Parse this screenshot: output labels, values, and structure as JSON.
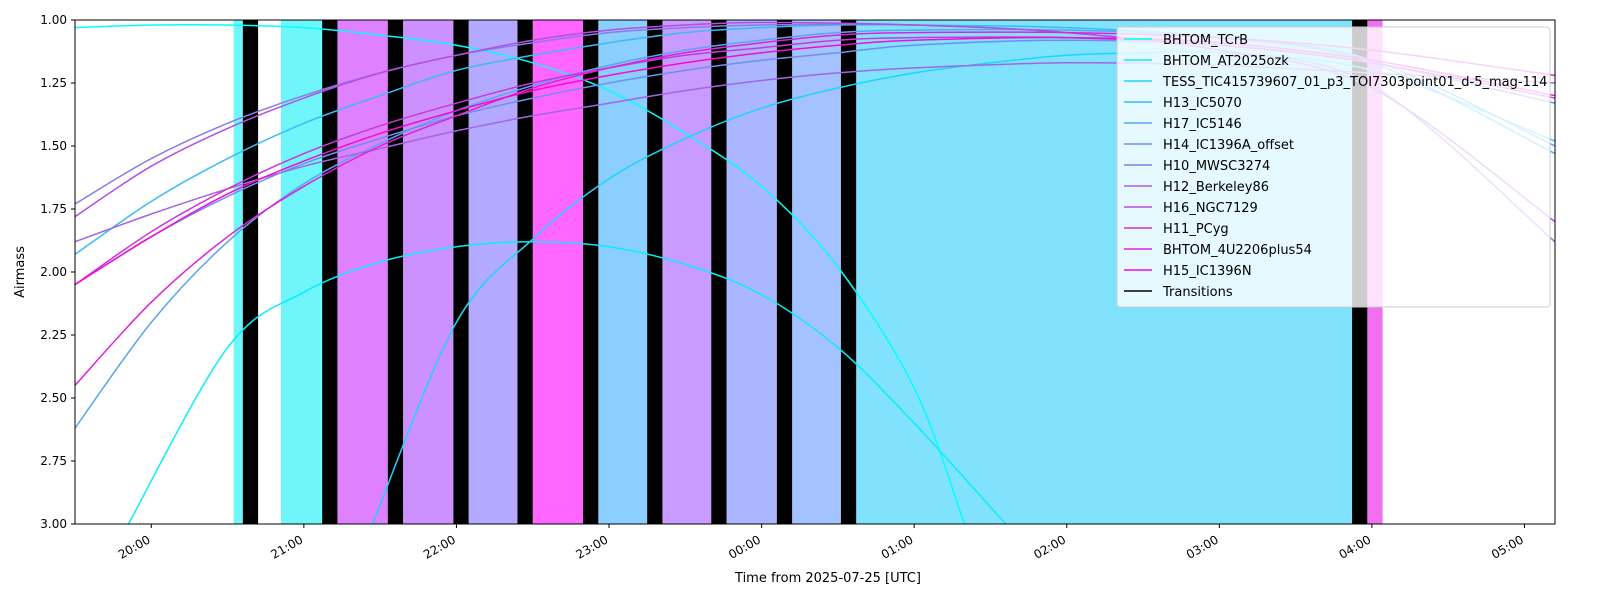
{
  "chart_data": {
    "type": "line",
    "title": "",
    "xlabel": "Time from 2025-07-25 [UTC]",
    "ylabel": "Airmass",
    "x_range_hours": [
      19.5,
      29.2
    ],
    "ylim": [
      3.0,
      1.0
    ],
    "y_inverted": true,
    "x_ticks": [
      {
        "h": 20,
        "label": "20:00"
      },
      {
        "h": 21,
        "label": "21:00"
      },
      {
        "h": 22,
        "label": "22:00"
      },
      {
        "h": 23,
        "label": "23:00"
      },
      {
        "h": 24,
        "label": "00:00"
      },
      {
        "h": 25,
        "label": "01:00"
      },
      {
        "h": 26,
        "label": "02:00"
      },
      {
        "h": 27,
        "label": "03:00"
      },
      {
        "h": 28,
        "label": "04:00"
      },
      {
        "h": 29,
        "label": "05:00"
      }
    ],
    "y_ticks": [
      {
        "v": 1.0,
        "label": "1.00"
      },
      {
        "v": 1.25,
        "label": "1.25"
      },
      {
        "v": 1.5,
        "label": "1.50"
      },
      {
        "v": 1.75,
        "label": "1.75"
      },
      {
        "v": 2.0,
        "label": "2.00"
      },
      {
        "v": 2.25,
        "label": "2.25"
      },
      {
        "v": 2.5,
        "label": "2.50"
      },
      {
        "v": 2.75,
        "label": "2.75"
      },
      {
        "v": 3.0,
        "label": "3.00"
      }
    ],
    "grid": false,
    "legend_position": "top-right",
    "series": [
      {
        "name": "BHTOM_TCrB",
        "color": "#00ffff",
        "points": [
          [
            19.5,
            1.03
          ],
          [
            20.0,
            1.02
          ],
          [
            20.5,
            1.02
          ],
          [
            21.0,
            1.03
          ],
          [
            21.5,
            1.06
          ],
          [
            22.0,
            1.1
          ],
          [
            22.5,
            1.17
          ],
          [
            23.0,
            1.28
          ],
          [
            23.5,
            1.45
          ],
          [
            24.0,
            1.66
          ],
          [
            24.5,
            1.98
          ],
          [
            25.0,
            2.46
          ],
          [
            25.33,
            3.0
          ]
        ]
      },
      {
        "name": "BHTOM_AT2025ozk",
        "color": "#0aeefc",
        "points": [
          [
            19.85,
            3.0
          ],
          [
            20.5,
            2.3
          ],
          [
            21.0,
            2.08
          ],
          [
            21.5,
            1.96
          ],
          [
            22.0,
            1.9
          ],
          [
            22.5,
            1.88
          ],
          [
            23.0,
            1.9
          ],
          [
            23.5,
            1.97
          ],
          [
            24.0,
            2.09
          ],
          [
            24.5,
            2.3
          ],
          [
            25.0,
            2.6
          ],
          [
            25.6,
            3.0
          ]
        ]
      },
      {
        "name": "TESS_TIC415739607_01_p3_TOI7303point01_d-5_mag-114",
        "color": "#1cd5f9",
        "points": [
          [
            21.45,
            3.0
          ],
          [
            22.0,
            2.2
          ],
          [
            22.5,
            1.87
          ],
          [
            23.0,
            1.63
          ],
          [
            23.5,
            1.47
          ],
          [
            24.0,
            1.35
          ],
          [
            24.5,
            1.27
          ],
          [
            25.0,
            1.21
          ],
          [
            25.5,
            1.17
          ],
          [
            26.0,
            1.14
          ],
          [
            26.5,
            1.13
          ],
          [
            27.0,
            1.13
          ],
          [
            28.0,
            1.2
          ],
          [
            29.2,
            1.48
          ]
        ]
      },
      {
        "name": "H13_IC5070",
        "color": "#3bbbf3",
        "points": [
          [
            19.5,
            1.93
          ],
          [
            20.0,
            1.72
          ],
          [
            20.5,
            1.55
          ],
          [
            21.0,
            1.41
          ],
          [
            21.5,
            1.3
          ],
          [
            22.0,
            1.2
          ],
          [
            22.5,
            1.14
          ],
          [
            23.0,
            1.09
          ],
          [
            23.5,
            1.05
          ],
          [
            24.0,
            1.03
          ],
          [
            24.5,
            1.02
          ],
          [
            25.0,
            1.02
          ],
          [
            26.0,
            1.03
          ],
          [
            27.0,
            1.07
          ],
          [
            28.0,
            1.17
          ],
          [
            29.2,
            1.53
          ]
        ]
      },
      {
        "name": "H17_IC5146",
        "color": "#5aa5ef",
        "points": [
          [
            19.5,
            2.62
          ],
          [
            20.0,
            2.2
          ],
          [
            20.5,
            1.88
          ],
          [
            21.0,
            1.65
          ],
          [
            21.5,
            1.49
          ],
          [
            22.0,
            1.36
          ],
          [
            22.5,
            1.26
          ],
          [
            23.0,
            1.18
          ],
          [
            23.5,
            1.12
          ],
          [
            24.0,
            1.08
          ],
          [
            24.5,
            1.05
          ],
          [
            25.0,
            1.04
          ],
          [
            26.0,
            1.04
          ],
          [
            27.0,
            1.07
          ],
          [
            28.0,
            1.16
          ],
          [
            29.2,
            1.5
          ]
        ]
      },
      {
        "name": "H14_IC1396A_offset",
        "color": "#6e90ec",
        "points": [
          [
            19.5,
            2.05
          ],
          [
            20.0,
            1.86
          ],
          [
            20.5,
            1.7
          ],
          [
            21.0,
            1.57
          ],
          [
            21.5,
            1.47
          ],
          [
            22.0,
            1.38
          ],
          [
            22.5,
            1.31
          ],
          [
            23.0,
            1.25
          ],
          [
            23.5,
            1.2
          ],
          [
            24.0,
            1.16
          ],
          [
            24.5,
            1.13
          ],
          [
            25.0,
            1.1
          ],
          [
            26.0,
            1.08
          ],
          [
            27.0,
            1.1
          ],
          [
            28.0,
            1.17
          ],
          [
            29.2,
            1.33
          ]
        ]
      },
      {
        "name": "H10_MWSC3274",
        "color": "#8a7be6",
        "points": [
          [
            19.5,
            1.73
          ],
          [
            20.0,
            1.55
          ],
          [
            20.5,
            1.41
          ],
          [
            21.0,
            1.3
          ],
          [
            21.5,
            1.21
          ],
          [
            22.0,
            1.14
          ],
          [
            22.5,
            1.09
          ],
          [
            23.0,
            1.05
          ],
          [
            23.5,
            1.03
          ],
          [
            24.0,
            1.02
          ],
          [
            25.0,
            1.02
          ],
          [
            26.0,
            1.05
          ],
          [
            27.0,
            1.12
          ],
          [
            28.0,
            1.26
          ],
          [
            29.2,
            1.88
          ]
        ]
      },
      {
        "name": "H12_Berkeley86",
        "color": "#a265e3",
        "points": [
          [
            19.5,
            1.88
          ],
          [
            20.0,
            1.77
          ],
          [
            20.5,
            1.67
          ],
          [
            21.0,
            1.58
          ],
          [
            21.5,
            1.51
          ],
          [
            22.0,
            1.44
          ],
          [
            22.5,
            1.38
          ],
          [
            23.0,
            1.33
          ],
          [
            23.5,
            1.28
          ],
          [
            24.0,
            1.24
          ],
          [
            24.5,
            1.21
          ],
          [
            25.0,
            1.19
          ],
          [
            26.0,
            1.17
          ],
          [
            27.0,
            1.18
          ],
          [
            28.0,
            1.21
          ],
          [
            29.2,
            1.25
          ]
        ]
      },
      {
        "name": "H16_NGC7129",
        "color": "#b54ee0",
        "points": [
          [
            19.5,
            1.78
          ],
          [
            20.0,
            1.58
          ],
          [
            20.5,
            1.43
          ],
          [
            21.0,
            1.31
          ],
          [
            21.5,
            1.21
          ],
          [
            22.0,
            1.14
          ],
          [
            22.5,
            1.08
          ],
          [
            23.0,
            1.04
          ],
          [
            23.5,
            1.02
          ],
          [
            24.0,
            1.01
          ],
          [
            25.0,
            1.02
          ],
          [
            26.0,
            1.05
          ],
          [
            27.0,
            1.12
          ],
          [
            28.0,
            1.27
          ],
          [
            29.2,
            1.8
          ]
        ]
      },
      {
        "name": "H11_PCyg",
        "color": "#c938dc",
        "points": [
          [
            19.5,
            2.05
          ],
          [
            20.0,
            1.84
          ],
          [
            20.5,
            1.67
          ],
          [
            21.0,
            1.53
          ],
          [
            21.5,
            1.42
          ],
          [
            22.0,
            1.33
          ],
          [
            22.5,
            1.25
          ],
          [
            23.0,
            1.19
          ],
          [
            23.5,
            1.14
          ],
          [
            24.0,
            1.11
          ],
          [
            24.5,
            1.08
          ],
          [
            25.0,
            1.07
          ],
          [
            26.0,
            1.07
          ],
          [
            27.0,
            1.1
          ],
          [
            28.0,
            1.17
          ],
          [
            29.2,
            1.31
          ]
        ]
      },
      {
        "name": "BHTOM_4U2206plus54",
        "color": "#e21fd9",
        "points": [
          [
            19.5,
            2.45
          ],
          [
            20.0,
            2.12
          ],
          [
            20.5,
            1.86
          ],
          [
            21.0,
            1.66
          ],
          [
            21.5,
            1.5
          ],
          [
            22.0,
            1.38
          ],
          [
            22.5,
            1.27
          ],
          [
            23.0,
            1.19
          ],
          [
            23.5,
            1.13
          ],
          [
            24.0,
            1.09
          ],
          [
            24.5,
            1.06
          ],
          [
            25.0,
            1.05
          ],
          [
            26.0,
            1.05
          ],
          [
            27.0,
            1.07
          ],
          [
            28.0,
            1.12
          ],
          [
            29.2,
            1.22
          ]
        ]
      },
      {
        "name": "H15_IC1396N",
        "color": "#f809d5",
        "points": [
          [
            19.5,
            2.05
          ],
          [
            20.0,
            1.86
          ],
          [
            20.5,
            1.69
          ],
          [
            21.0,
            1.56
          ],
          [
            21.5,
            1.45
          ],
          [
            22.0,
            1.36
          ],
          [
            22.5,
            1.28
          ],
          [
            23.0,
            1.22
          ],
          [
            23.5,
            1.17
          ],
          [
            24.0,
            1.13
          ],
          [
            24.5,
            1.1
          ],
          [
            25.0,
            1.08
          ],
          [
            26.0,
            1.07
          ],
          [
            27.0,
            1.09
          ],
          [
            28.0,
            1.16
          ],
          [
            29.2,
            1.3
          ]
        ]
      }
    ],
    "shaded_spans": [
      {
        "start": 20.54,
        "end": 20.6,
        "color": "#6ff6fb"
      },
      {
        "start": 20.85,
        "end": 21.12,
        "color": "#6ff6fb"
      },
      {
        "start": 21.22,
        "end": 21.55,
        "color": "#df80ff"
      },
      {
        "start": 21.65,
        "end": 21.98,
        "color": "#cc90ff"
      },
      {
        "start": 22.08,
        "end": 22.4,
        "color": "#b3a9ff"
      },
      {
        "start": 22.5,
        "end": 22.83,
        "color": "#ff66ff"
      },
      {
        "start": 22.93,
        "end": 23.25,
        "color": "#8acfff"
      },
      {
        "start": 23.35,
        "end": 23.67,
        "color": "#c79bff"
      },
      {
        "start": 23.77,
        "end": 24.1,
        "color": "#aab6ff"
      },
      {
        "start": 24.2,
        "end": 24.52,
        "color": "#a3c2ff"
      },
      {
        "start": 24.62,
        "end": 27.87,
        "color": "#81e2fe"
      },
      {
        "start": 27.97,
        "end": 28.07,
        "color": "#f070f0"
      }
    ],
    "transitions": [
      {
        "start": 20.6,
        "end": 20.7
      },
      {
        "start": 21.12,
        "end": 21.22
      },
      {
        "start": 21.55,
        "end": 21.65
      },
      {
        "start": 21.98,
        "end": 22.08
      },
      {
        "start": 22.4,
        "end": 22.5
      },
      {
        "start": 22.83,
        "end": 22.93
      },
      {
        "start": 23.25,
        "end": 23.35
      },
      {
        "start": 23.67,
        "end": 23.77
      },
      {
        "start": 24.1,
        "end": 24.2
      },
      {
        "start": 24.52,
        "end": 24.62
      },
      {
        "start": 27.87,
        "end": 27.97
      }
    ],
    "legend_entries": [
      {
        "label": "BHTOM_TCrB",
        "color": "#00ffff"
      },
      {
        "label": "BHTOM_AT2025ozk",
        "color": "#0aeefc"
      },
      {
        "label": "TESS_TIC415739607_01_p3_TOI7303point01_d-5_mag-114",
        "color": "#1cd5f9"
      },
      {
        "label": "H13_IC5070",
        "color": "#3bbbf3"
      },
      {
        "label": "H17_IC5146",
        "color": "#5aa5ef"
      },
      {
        "label": "H14_IC1396A_offset",
        "color": "#6e90ec"
      },
      {
        "label": "H10_MWSC3274",
        "color": "#8a7be6"
      },
      {
        "label": "H12_Berkeley86",
        "color": "#a265e3"
      },
      {
        "label": "H16_NGC7129",
        "color": "#b54ee0"
      },
      {
        "label": "H11_PCyg",
        "color": "#c938dc"
      },
      {
        "label": "BHTOM_4U2206plus54",
        "color": "#e21fd9"
      },
      {
        "label": "H15_IC1396N",
        "color": "#f809d5"
      },
      {
        "label": "Transitions",
        "color": "#000000"
      }
    ]
  }
}
